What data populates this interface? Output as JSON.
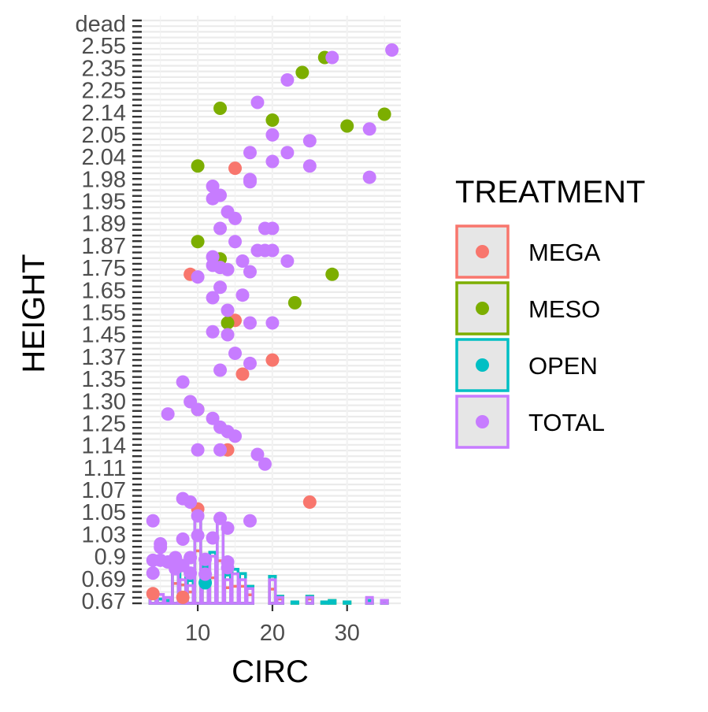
{
  "chart_data": {
    "type": "scatter",
    "title": "",
    "xlabel": "CIRC",
    "ylabel": "HEIGHT",
    "xlim": [
      2.5,
      37.2
    ],
    "x_ticks": [
      10,
      20,
      30
    ],
    "grid": true,
    "legend_position": "right",
    "legend_title": "TREATMENT",
    "y_axis_kind": "categorical (unordered HEIGHT levels, mostly overlapping labels)",
    "y_tick_labels_legible": [
      "dead",
      "2.55",
      "2.35",
      "2.25",
      "2.14",
      "2.05",
      "2.04",
      "1.98",
      "1.95",
      "1.89",
      "1.87",
      "1.75",
      "1.65",
      "1.55",
      "1.45",
      "1.37",
      "1.35",
      "1.30",
      "1.25",
      "1.14",
      "1.11",
      "1.07",
      "1.05",
      "1.03",
      "0.9",
      "0.69",
      "0.67"
    ],
    "series": [
      {
        "name": "MEGA",
        "color": "#F8766D",
        "points": [
          [
            15,
            2.27
          ],
          [
            9,
            1.89
          ],
          [
            20,
            1.58
          ],
          [
            16,
            1.54
          ],
          [
            14,
            1.36
          ],
          [
            10,
            1.22
          ],
          [
            25,
            1.24
          ],
          [
            4,
            0.69
          ],
          [
            8,
            0.68
          ],
          [
            15,
            1.71
          ]
        ]
      },
      {
        "name": "MESO",
        "color": "#7CAE00",
        "points": [
          [
            27,
            2.56
          ],
          [
            24,
            2.54
          ],
          [
            13,
            2.48
          ],
          [
            35,
            2.46
          ],
          [
            20,
            2.44
          ],
          [
            30,
            2.42
          ],
          [
            10,
            2.28
          ],
          [
            10,
            2.02
          ],
          [
            13,
            1.96
          ],
          [
            28,
            1.89
          ],
          [
            23,
            1.78
          ],
          [
            14,
            1.7
          ],
          [
            10,
            1.45
          ]
        ]
      },
      {
        "name": "OPEN",
        "color": "#00BFC4",
        "points": [
          [
            11,
            0.72
          ]
        ]
      },
      {
        "name": "TOTAL",
        "color": "#C77CFF",
        "points": [
          [
            36,
            2.57
          ],
          [
            28,
            2.56
          ],
          [
            22,
            2.53
          ],
          [
            18,
            2.5
          ],
          [
            33,
            2.41
          ],
          [
            20,
            2.39
          ],
          [
            25,
            2.37
          ],
          [
            17,
            2.33
          ],
          [
            22,
            2.33
          ],
          [
            20,
            2.3
          ],
          [
            25,
            2.28
          ],
          [
            33,
            2.23
          ],
          [
            17,
            2.22
          ],
          [
            17,
            2.21
          ],
          [
            12,
            2.19
          ],
          [
            13,
            2.15
          ],
          [
            12,
            2.14
          ],
          [
            14,
            2.1
          ],
          [
            15,
            2.08
          ],
          [
            19,
            2.05
          ],
          [
            20,
            2.05
          ],
          [
            13,
            2.05
          ],
          [
            15,
            2.02
          ],
          [
            19,
            2.0
          ],
          [
            12,
            1.97
          ],
          [
            18,
            2.0
          ],
          [
            20,
            2.0
          ],
          [
            22,
            1.95
          ],
          [
            16,
            1.95
          ],
          [
            12,
            1.93
          ],
          [
            13,
            1.92
          ],
          [
            14,
            1.91
          ],
          [
            17,
            1.9
          ],
          [
            10,
            1.88
          ],
          [
            13,
            1.84
          ],
          [
            16,
            1.81
          ],
          [
            12,
            1.8
          ],
          [
            14,
            1.75
          ],
          [
            17,
            1.7
          ],
          [
            20,
            1.7
          ],
          [
            12,
            1.67
          ],
          [
            14,
            1.66
          ],
          [
            15,
            1.6
          ],
          [
            17,
            1.57
          ],
          [
            13,
            1.55
          ],
          [
            8,
            1.52
          ],
          [
            9,
            1.47
          ],
          [
            6,
            1.44
          ],
          [
            10,
            1.45
          ],
          [
            12,
            1.43
          ],
          [
            13,
            1.41
          ],
          [
            14,
            1.4
          ],
          [
            15,
            1.39
          ],
          [
            10,
            1.36
          ],
          [
            13,
            1.36
          ],
          [
            18,
            1.35
          ],
          [
            19,
            1.33
          ],
          [
            8,
            1.25
          ],
          [
            9,
            1.24
          ],
          [
            4,
            1.18
          ],
          [
            10,
            1.2
          ],
          [
            13,
            1.19
          ],
          [
            17,
            1.18
          ],
          [
            14,
            1.15
          ],
          [
            10,
            1.12
          ],
          [
            12,
            1.11
          ],
          [
            8,
            1.1
          ],
          [
            5,
            1.06
          ],
          [
            5,
            1.03
          ],
          [
            7,
            0.95
          ],
          [
            9,
            0.95
          ],
          [
            4,
            0.92
          ],
          [
            5,
            0.92
          ],
          [
            6,
            0.9
          ],
          [
            11,
            0.93
          ],
          [
            14,
            0.9
          ],
          [
            8,
            0.86
          ],
          [
            7,
            0.83
          ],
          [
            4,
            0.79
          ],
          [
            9,
            0.79
          ],
          [
            11,
            0.78
          ],
          [
            14,
            0.84
          ]
        ]
      }
    ],
    "histogram": {
      "type": "histogram",
      "x": [
        4,
        5,
        6,
        7,
        8,
        9,
        10,
        11,
        12,
        13,
        14,
        15,
        16,
        17,
        18,
        19,
        20,
        21,
        22,
        23,
        24,
        25,
        26,
        27,
        28,
        29,
        30,
        31,
        32,
        33,
        34,
        35,
        36
      ],
      "series": [
        {
          "name": "MEGA",
          "values": [
            6,
            3,
            2,
            14,
            13,
            8,
            37,
            12,
            18,
            30,
            11,
            12,
            12,
            6,
            0,
            0,
            10,
            3,
            0,
            0,
            0,
            3,
            0,
            0,
            0,
            0,
            0,
            0,
            0,
            0,
            0,
            0,
            0
          ]
        },
        {
          "name": "MESO",
          "values": [
            0,
            0,
            0,
            12,
            10,
            8,
            32,
            12,
            18,
            29,
            9,
            12,
            9,
            6,
            0,
            0,
            9,
            2,
            0,
            1,
            0,
            2,
            0,
            1,
            2,
            0,
            1,
            0,
            0,
            2,
            0,
            2,
            0
          ]
        },
        {
          "name": "OPEN",
          "values": [
            0,
            0,
            0,
            0,
            0,
            0,
            0,
            2,
            0,
            0,
            0,
            0,
            0,
            0,
            0,
            0,
            0,
            0,
            0,
            0,
            0,
            0,
            0,
            0,
            0,
            0,
            0,
            0,
            0,
            0,
            0,
            0,
            0
          ]
        },
        {
          "name": "TOTAL",
          "values": [
            4,
            3,
            2,
            10,
            8,
            6,
            28,
            10,
            16,
            27,
            8,
            10,
            8,
            5,
            0,
            0,
            8,
            2,
            0,
            0,
            0,
            2,
            0,
            0,
            0,
            0,
            0,
            0,
            0,
            2,
            0,
            1,
            0
          ]
        }
      ]
    }
  }
}
